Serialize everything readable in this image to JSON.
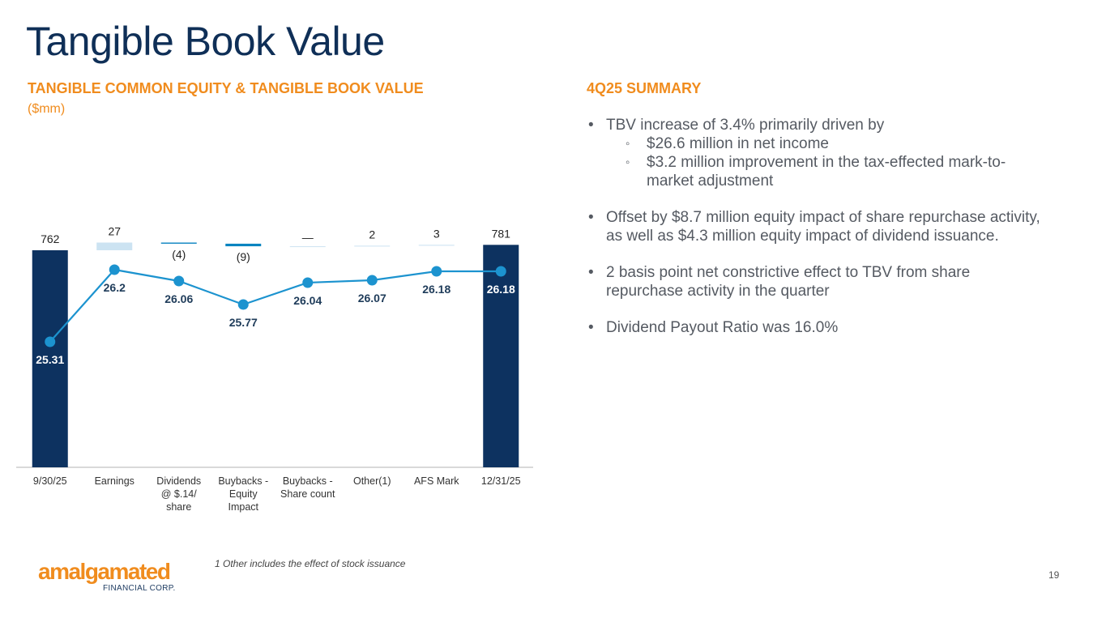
{
  "title": "Tangible Book Value",
  "chart_section": {
    "title": "TANGIBLE COMMON EQUITY & TANGIBLE BOOK VALUE",
    "unit": "($mm)"
  },
  "chart_data": {
    "type": "bar",
    "subtype": "waterfall_with_line",
    "categories": [
      "9/30/25",
      "Earnings",
      "Dividends @ $.14/ share",
      "Buybacks - Equity Impact",
      "Buybacks - Share count",
      "Other(1)",
      "AFS Mark",
      "12/31/25"
    ],
    "series": [
      {
        "name": "Tangible Common Equity ($mm)",
        "kind": "waterfall",
        "values": [
          762,
          27,
          -4,
          -9,
          0,
          2,
          3,
          781
        ],
        "labels": [
          "762",
          "27",
          "(4)",
          "(9)",
          "—",
          "2",
          "3",
          "781"
        ],
        "bar_kinds": [
          "total",
          "increase",
          "decrease",
          "decrease",
          "increase",
          "increase",
          "increase",
          "total"
        ]
      },
      {
        "name": "Tangible Book Value per Share",
        "kind": "line",
        "values": [
          25.31,
          26.2,
          26.06,
          25.77,
          26.04,
          26.07,
          26.18,
          26.18
        ],
        "labels": [
          "25.31",
          "26.2",
          "26.06",
          "25.77",
          "26.04",
          "26.07",
          "26.18",
          "26.18"
        ]
      }
    ],
    "colors": {
      "total": "#0d3260",
      "increase": "#cce3f2",
      "decrease": "#0a84c0",
      "line": "#1c93cf"
    }
  },
  "summary": {
    "title": "4Q25 SUMMARY",
    "bullets": [
      {
        "text": "TBV increase of 3.4% primarily driven by",
        "sub": [
          "$26.6 million in net income",
          "$3.2 million improvement in the tax-effected mark-to-market adjustment"
        ]
      },
      {
        "text": "Offset by $8.7 million equity impact of share repurchase activity, as well as $4.3 million equity impact of dividend issuance.",
        "sub": []
      },
      {
        "text": "2 basis point net constrictive effect to TBV from share repurchase activity in the quarter",
        "sub": []
      },
      {
        "text": "Dividend Payout Ratio was 16.0%",
        "sub": []
      }
    ]
  },
  "footnote": "1 Other includes the effect of stock issuance",
  "page_number": "19",
  "logo": {
    "name": "amalgamated",
    "sub": "FINANCIAL CORP."
  }
}
